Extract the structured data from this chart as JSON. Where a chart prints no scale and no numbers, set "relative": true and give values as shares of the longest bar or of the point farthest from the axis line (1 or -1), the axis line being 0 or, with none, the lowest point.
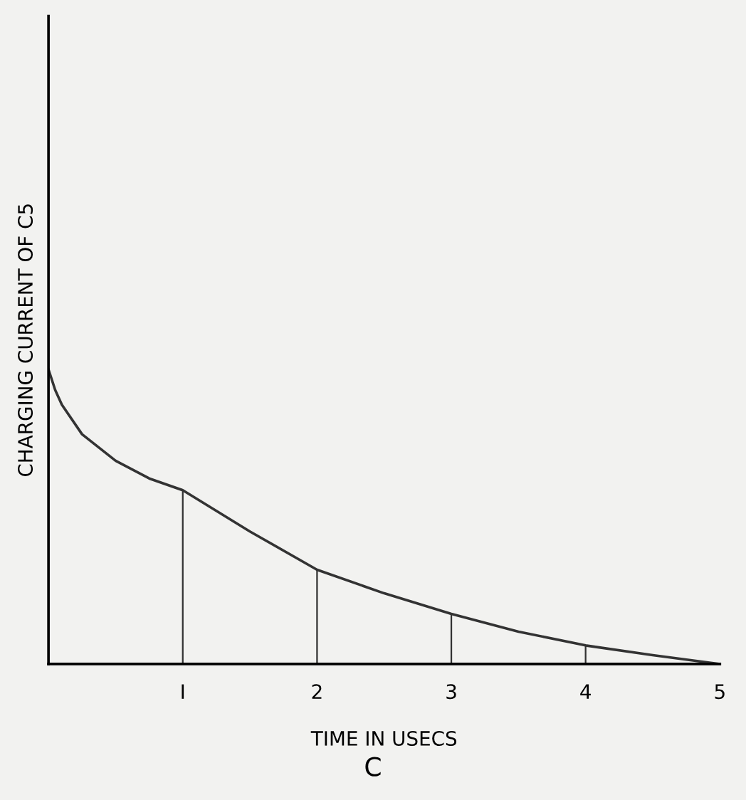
{
  "chart_data": {
    "type": "line",
    "relative": true,
    "xlabel": "TIME IN USECS",
    "ylabel": "CHARGING CURRENT OF C5",
    "annotations": [
      "C"
    ],
    "xlim": [
      0,
      5
    ],
    "xticks": [
      {
        "value": 1,
        "label": "I"
      },
      2,
      3,
      4,
      5
    ],
    "tick_labels": "x",
    "grid": false,
    "legend": false,
    "marker": "none",
    "line_style": "solid",
    "series": [
      {
        "color": "#333333",
        "x": [
          0,
          0.05,
          0.1,
          0.25,
          0.5,
          0.75,
          1,
          1.5,
          2,
          2.5,
          3,
          3.5,
          4,
          4.5,
          5
        ],
        "values": [
          1,
          0.93,
          0.88,
          0.78,
          0.69,
          0.63,
          0.59,
          0.45,
          0.32,
          0.24,
          0.17,
          0.11,
          0.063,
          0.03,
          0
        ]
      },
      {
        "type": "bar",
        "color": "#333333",
        "x": [
          1,
          2,
          3,
          4
        ],
        "values": [
          0.59,
          0.32,
          0.17,
          0.063
        ]
      }
    ]
  }
}
